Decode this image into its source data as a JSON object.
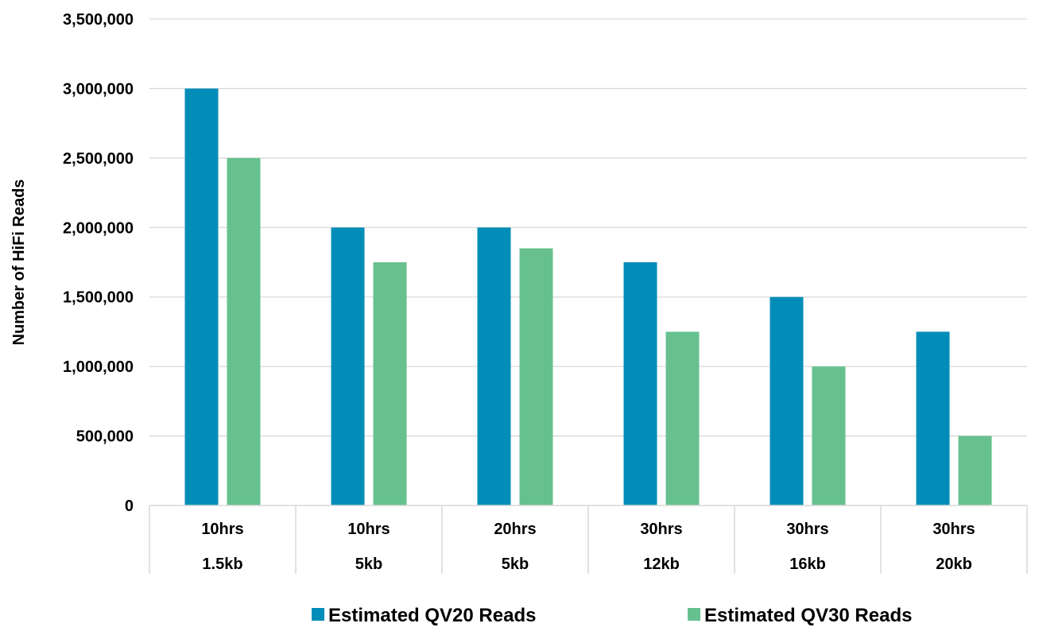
{
  "chart_data": {
    "type": "bar",
    "title": "",
    "ylabel": "Number of HiFi  Reads",
    "xlabel": "",
    "categories": [
      [
        "10hrs",
        "1.5kb"
      ],
      [
        "10hrs",
        "5kb"
      ],
      [
        "20hrs",
        "5kb"
      ],
      [
        "30hrs",
        "12kb"
      ],
      [
        "30hrs",
        "16kb"
      ],
      [
        "30hrs",
        "20kb"
      ]
    ],
    "series": [
      {
        "name": "Estimated QV20 Reads",
        "color": "#008DB8",
        "values": [
          3000000,
          2000000,
          2000000,
          1750000,
          1500000,
          1250000
        ]
      },
      {
        "name": "Estimated QV30 Reads",
        "color": "#66C18E",
        "values": [
          2500000,
          1750000,
          1850000,
          1250000,
          1000000,
          500000
        ]
      }
    ],
    "ylim": [
      0,
      3500000
    ],
    "yticks": [
      0,
      500000,
      1000000,
      1500000,
      2000000,
      2500000,
      3000000,
      3500000
    ],
    "ytick_labels": [
      "0",
      "500,000",
      "1,000,000",
      "1,500,000",
      "2,000,000",
      "2,500,000",
      "3,000,000",
      "3,500,000"
    ],
    "grid": true,
    "legend_position": "bottom"
  }
}
